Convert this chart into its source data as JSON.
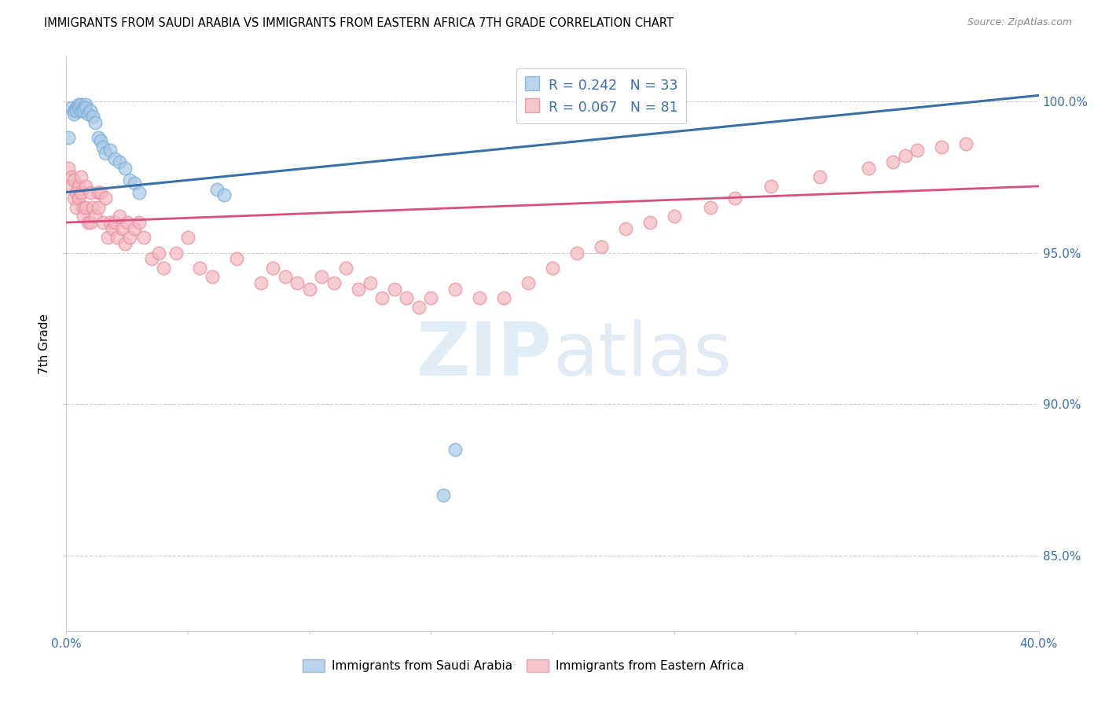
{
  "title": "IMMIGRANTS FROM SAUDI ARABIA VS IMMIGRANTS FROM EASTERN AFRICA 7TH GRADE CORRELATION CHART",
  "source": "Source: ZipAtlas.com",
  "ylabel": "7th Grade",
  "xlim": [
    0.0,
    0.4
  ],
  "ylim": [
    0.825,
    1.015
  ],
  "yticks": [
    0.85,
    0.9,
    0.95,
    1.0
  ],
  "ytick_labels": [
    "85.0%",
    "90.0%",
    "95.0%",
    "100.0%"
  ],
  "blue_R": 0.242,
  "blue_N": 33,
  "pink_R": 0.067,
  "pink_N": 81,
  "blue_color": "#aac9e8",
  "pink_color": "#f4b8c1",
  "blue_edge_color": "#7aafd4",
  "pink_edge_color": "#e8919e",
  "blue_line_color": "#3b6faa",
  "pink_line_color": "#d94f7a",
  "legend_label_blue": "Immigrants from Saudi Arabia",
  "legend_label_pink": "Immigrants from Eastern Africa",
  "blue_x": [
    0.001,
    0.002,
    0.003,
    0.003,
    0.004,
    0.004,
    0.005,
    0.005,
    0.006,
    0.006,
    0.007,
    0.007,
    0.008,
    0.008,
    0.009,
    0.01,
    0.011,
    0.012,
    0.013,
    0.014,
    0.015,
    0.016,
    0.018,
    0.02,
    0.022,
    0.024,
    0.026,
    0.028,
    0.03,
    0.062,
    0.065,
    0.155,
    0.16
  ],
  "blue_y": [
    0.988,
    0.998,
    0.997,
    0.996,
    0.998,
    0.997,
    0.999,
    0.998,
    0.997,
    0.999,
    0.998,
    0.997,
    0.999,
    0.998,
    0.996,
    0.997,
    0.995,
    0.993,
    0.988,
    0.987,
    0.985,
    0.983,
    0.984,
    0.981,
    0.98,
    0.978,
    0.974,
    0.973,
    0.97,
    0.971,
    0.969,
    0.87,
    0.885
  ],
  "pink_x": [
    0.001,
    0.002,
    0.002,
    0.003,
    0.003,
    0.004,
    0.004,
    0.005,
    0.005,
    0.006,
    0.006,
    0.007,
    0.007,
    0.008,
    0.008,
    0.009,
    0.01,
    0.01,
    0.011,
    0.012,
    0.013,
    0.013,
    0.014,
    0.015,
    0.016,
    0.017,
    0.018,
    0.019,
    0.02,
    0.021,
    0.022,
    0.023,
    0.024,
    0.025,
    0.026,
    0.028,
    0.03,
    0.032,
    0.035,
    0.038,
    0.04,
    0.045,
    0.05,
    0.055,
    0.06,
    0.07,
    0.08,
    0.085,
    0.09,
    0.095,
    0.1,
    0.105,
    0.11,
    0.115,
    0.12,
    0.125,
    0.13,
    0.135,
    0.14,
    0.145,
    0.15,
    0.16,
    0.17,
    0.18,
    0.19,
    0.2,
    0.21,
    0.22,
    0.23,
    0.24,
    0.25,
    0.265,
    0.275,
    0.29,
    0.31,
    0.33,
    0.34,
    0.345,
    0.35,
    0.36,
    0.37
  ],
  "pink_y": [
    0.978,
    0.975,
    0.972,
    0.968,
    0.974,
    0.965,
    0.97,
    0.972,
    0.968,
    0.975,
    0.97,
    0.965,
    0.962,
    0.972,
    0.965,
    0.96,
    0.97,
    0.96,
    0.965,
    0.962,
    0.97,
    0.965,
    0.97,
    0.96,
    0.968,
    0.955,
    0.96,
    0.958,
    0.96,
    0.955,
    0.962,
    0.958,
    0.953,
    0.96,
    0.955,
    0.958,
    0.96,
    0.955,
    0.948,
    0.95,
    0.945,
    0.95,
    0.955,
    0.945,
    0.942,
    0.948,
    0.94,
    0.945,
    0.942,
    0.94,
    0.938,
    0.942,
    0.94,
    0.945,
    0.938,
    0.94,
    0.935,
    0.938,
    0.935,
    0.932,
    0.935,
    0.938,
    0.935,
    0.935,
    0.94,
    0.945,
    0.95,
    0.952,
    0.958,
    0.96,
    0.962,
    0.965,
    0.968,
    0.972,
    0.975,
    0.978,
    0.98,
    0.982,
    0.984,
    0.985,
    0.986
  ],
  "watermark_zip": "ZIP",
  "watermark_atlas": "atlas",
  "background_color": "#ffffff"
}
